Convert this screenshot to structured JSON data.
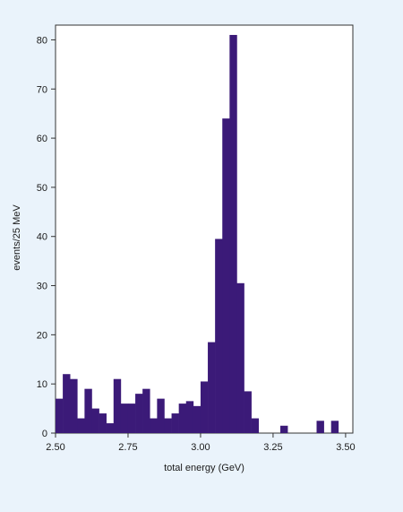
{
  "chart_data": {
    "type": "bar",
    "xlabel": "total energy (GeV)",
    "ylabel": "events/25 MeV",
    "xlim": [
      2.5,
      3.525
    ],
    "ylim": [
      0,
      83
    ],
    "bin_width": 0.025,
    "x_ticks": [
      2.5,
      2.75,
      3.0,
      3.25,
      3.5
    ],
    "x_tick_labels": [
      "2.50",
      "2.75",
      "3.00",
      "3.25",
      "3.50"
    ],
    "y_ticks": [
      0,
      10,
      20,
      30,
      40,
      50,
      60,
      70,
      80
    ],
    "y_tick_labels": [
      "0",
      "10",
      "20",
      "30",
      "40",
      "50",
      "60",
      "70",
      "80"
    ],
    "bar_color": "#3b1a78",
    "background_color": "#eaf3fb",
    "plot_background_color": "#ffffff",
    "grid": false,
    "bins": [
      {
        "x": 2.5,
        "value": 7
      },
      {
        "x": 2.525,
        "value": 12
      },
      {
        "x": 2.55,
        "value": 11
      },
      {
        "x": 2.575,
        "value": 3
      },
      {
        "x": 2.6,
        "value": 9
      },
      {
        "x": 2.625,
        "value": 5
      },
      {
        "x": 2.65,
        "value": 4
      },
      {
        "x": 2.675,
        "value": 2
      },
      {
        "x": 2.7,
        "value": 11
      },
      {
        "x": 2.725,
        "value": 6
      },
      {
        "x": 2.75,
        "value": 6
      },
      {
        "x": 2.775,
        "value": 8
      },
      {
        "x": 2.8,
        "value": 9
      },
      {
        "x": 2.825,
        "value": 3
      },
      {
        "x": 2.85,
        "value": 7
      },
      {
        "x": 2.875,
        "value": 3
      },
      {
        "x": 2.9,
        "value": 4
      },
      {
        "x": 2.925,
        "value": 6
      },
      {
        "x": 2.95,
        "value": 6.5
      },
      {
        "x": 2.975,
        "value": 5.5
      },
      {
        "x": 3.0,
        "value": 10.5
      },
      {
        "x": 3.025,
        "value": 18.5
      },
      {
        "x": 3.05,
        "value": 39.5
      },
      {
        "x": 3.075,
        "value": 64
      },
      {
        "x": 3.1,
        "value": 81
      },
      {
        "x": 3.125,
        "value": 30.5
      },
      {
        "x": 3.15,
        "value": 8.5
      },
      {
        "x": 3.175,
        "value": 3
      },
      {
        "x": 3.2,
        "value": 0
      },
      {
        "x": 3.225,
        "value": 0
      },
      {
        "x": 3.25,
        "value": 0
      },
      {
        "x": 3.275,
        "value": 1.5
      },
      {
        "x": 3.3,
        "value": 0
      },
      {
        "x": 3.325,
        "value": 0
      },
      {
        "x": 3.35,
        "value": 0
      },
      {
        "x": 3.375,
        "value": 0
      },
      {
        "x": 3.4,
        "value": 2.5
      },
      {
        "x": 3.425,
        "value": 0
      },
      {
        "x": 3.45,
        "value": 2.5
      },
      {
        "x": 3.475,
        "value": 0
      }
    ]
  }
}
